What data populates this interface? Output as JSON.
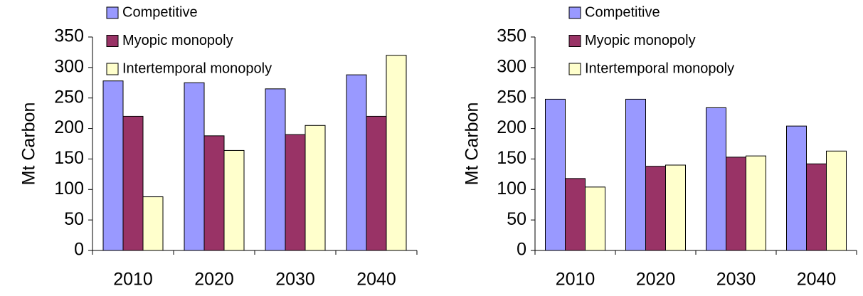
{
  "chart_data": [
    {
      "type": "bar",
      "y_label": "Mt Carbon",
      "categories": [
        "2010",
        "2020",
        "2030",
        "2040"
      ],
      "series": [
        {
          "name": "Competitive",
          "color": "#9999ff",
          "values": [
            278,
            275,
            265,
            288
          ]
        },
        {
          "name": "Myopic monopoly",
          "color": "#993366",
          "values": [
            220,
            188,
            190,
            220
          ]
        },
        {
          "name": "Intertemporal monopoly",
          "color": "#ffffcc",
          "values": [
            88,
            164,
            205,
            320
          ]
        }
      ],
      "ylim": [
        0,
        350
      ],
      "yticks": [
        0,
        50,
        100,
        150,
        200,
        250,
        300,
        350
      ]
    },
    {
      "type": "bar",
      "y_label": "Mt Carbon",
      "categories": [
        "2010",
        "2020",
        "2030",
        "2040"
      ],
      "series": [
        {
          "name": "Competitive",
          "color": "#9999ff",
          "values": [
            248,
            248,
            234,
            204
          ]
        },
        {
          "name": "Myopic monopoly",
          "color": "#993366",
          "values": [
            118,
            138,
            153,
            142
          ]
        },
        {
          "name": "Intertemporal monopoly",
          "color": "#ffffcc",
          "values": [
            104,
            140,
            155,
            163
          ]
        }
      ],
      "ylim": [
        0,
        350
      ],
      "yticks": [
        0,
        50,
        100,
        150,
        200,
        250,
        300,
        350
      ]
    }
  ]
}
